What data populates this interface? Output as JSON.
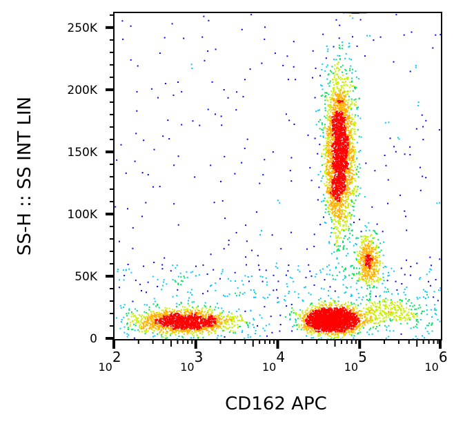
{
  "chart_data": {
    "type": "scatter",
    "subtype": "flow-cytometry density dot plot",
    "xlabel": "CD162 APC",
    "ylabel": "SS-H :: SS INT LIN",
    "x_scale": "log",
    "xlim": [
      100,
      1000000
    ],
    "ylim": [
      0,
      262144
    ],
    "x_ticks": [
      {
        "base": "10",
        "exp": "2",
        "value": 100
      },
      {
        "base": "10",
        "exp": "3",
        "value": 1000
      },
      {
        "base": "10",
        "exp": "4",
        "value": 10000
      },
      {
        "base": "10",
        "exp": "5",
        "value": 100000
      },
      {
        "base": "10",
        "exp": "6",
        "value": 1000000
      }
    ],
    "y_ticks": [
      {
        "label": "0",
        "value": 0
      },
      {
        "label": "50K",
        "value": 50000
      },
      {
        "label": "100K",
        "value": 100000
      },
      {
        "label": "150K",
        "value": 150000
      },
      {
        "label": "200K",
        "value": 200000
      },
      {
        "label": "250K",
        "value": 250000
      }
    ],
    "grid": false,
    "colormap": [
      "#0000ff",
      "#00c8ff",
      "#00e060",
      "#c8f000",
      "#ffb000",
      "#ff0000"
    ],
    "populations": [
      {
        "log10_x_center": 2.85,
        "log10_x_sd": 0.3,
        "y_center": 14000,
        "y_sd": 5000,
        "events": 1600
      },
      {
        "log10_x_center": 4.65,
        "log10_x_sd": 0.17,
        "y_center": 15000,
        "y_sd": 5000,
        "events": 2600
      },
      {
        "log10_x_center": 4.75,
        "log10_x_sd": 0.09,
        "y_center": 150000,
        "y_sd": 32000,
        "events": 2800
      },
      {
        "log10_x_center": 5.1,
        "log10_x_sd": 0.07,
        "y_center": 63000,
        "y_sd": 11000,
        "events": 500
      },
      {
        "log10_x_center": 5.35,
        "log10_x_sd": 0.25,
        "y_center": 22000,
        "y_sd": 6000,
        "events": 300
      },
      {
        "log10_x_center": 4.95,
        "log10_x_sd": 0.06,
        "y_center": 262144,
        "y_sd": 0,
        "events": 120
      }
    ]
  }
}
